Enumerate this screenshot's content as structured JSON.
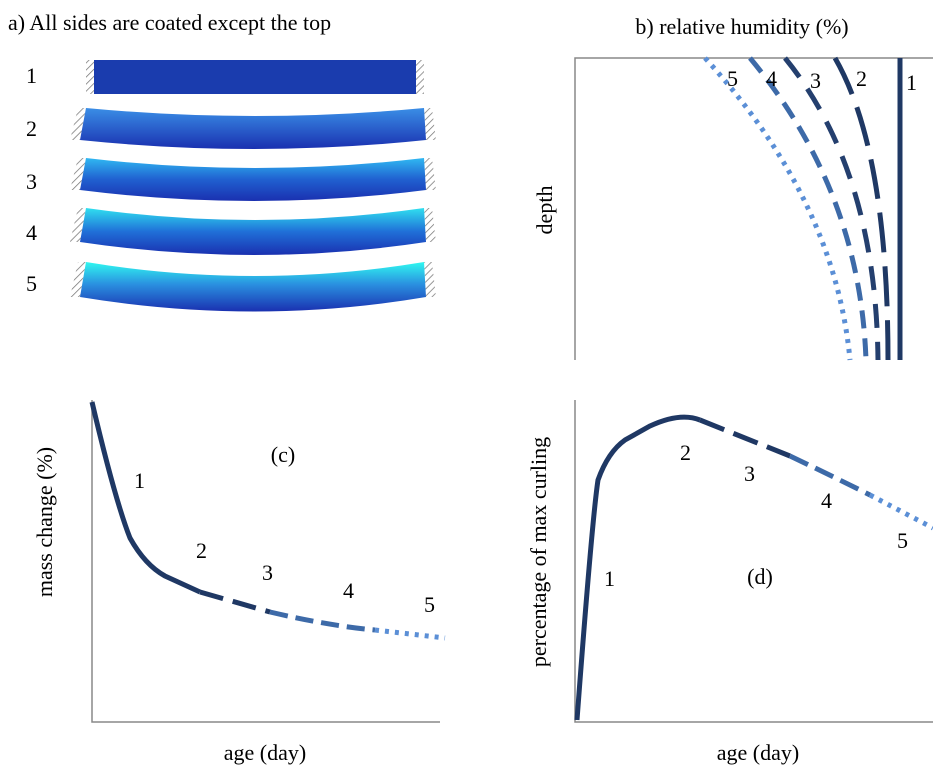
{
  "panel_a": {
    "title": "a) All sides are coated except the top",
    "stages": [
      "1",
      "2",
      "3",
      "4",
      "5"
    ]
  },
  "panel_b": {
    "title": "b) relative humidity (%)",
    "y_label": "depth",
    "curve_labels": [
      "1",
      "2",
      "3",
      "4",
      "5"
    ]
  },
  "panel_c": {
    "label": "(c)",
    "y_label": "mass change (%)",
    "x_label": "age (day)",
    "curve_labels": [
      "1",
      "2",
      "3",
      "4",
      "5"
    ]
  },
  "panel_d": {
    "label": "(d)",
    "y_label": "percentage of max curling",
    "x_label": "age (day)",
    "curve_labels": [
      "1",
      "2",
      "3",
      "4",
      "5"
    ]
  }
}
